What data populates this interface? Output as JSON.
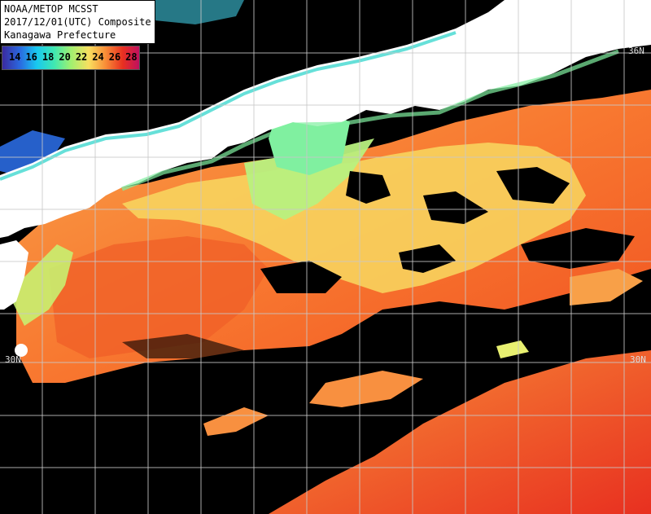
{
  "title": {
    "line1": "NOAA/METOP MCSST",
    "line2": "2017/12/01(UTC) Composite",
    "line3": "Kanagawa Prefecture"
  },
  "legend": {
    "labels": [
      "14",
      "16",
      "18",
      "20",
      "22",
      "24",
      "26",
      "28"
    ],
    "colors": [
      "#3a2aa0",
      "#2a6ae0",
      "#18c8f0",
      "#40e8b0",
      "#a0f070",
      "#f8e060",
      "#f89038",
      "#e83020",
      "#c01060"
    ]
  },
  "lat_labels": {
    "north": "36N",
    "south_left": "30N",
    "south_right": "30N"
  },
  "colors": {
    "land": "#ffffff",
    "cloud": "#000000",
    "grid": "#c8c8c8"
  }
}
